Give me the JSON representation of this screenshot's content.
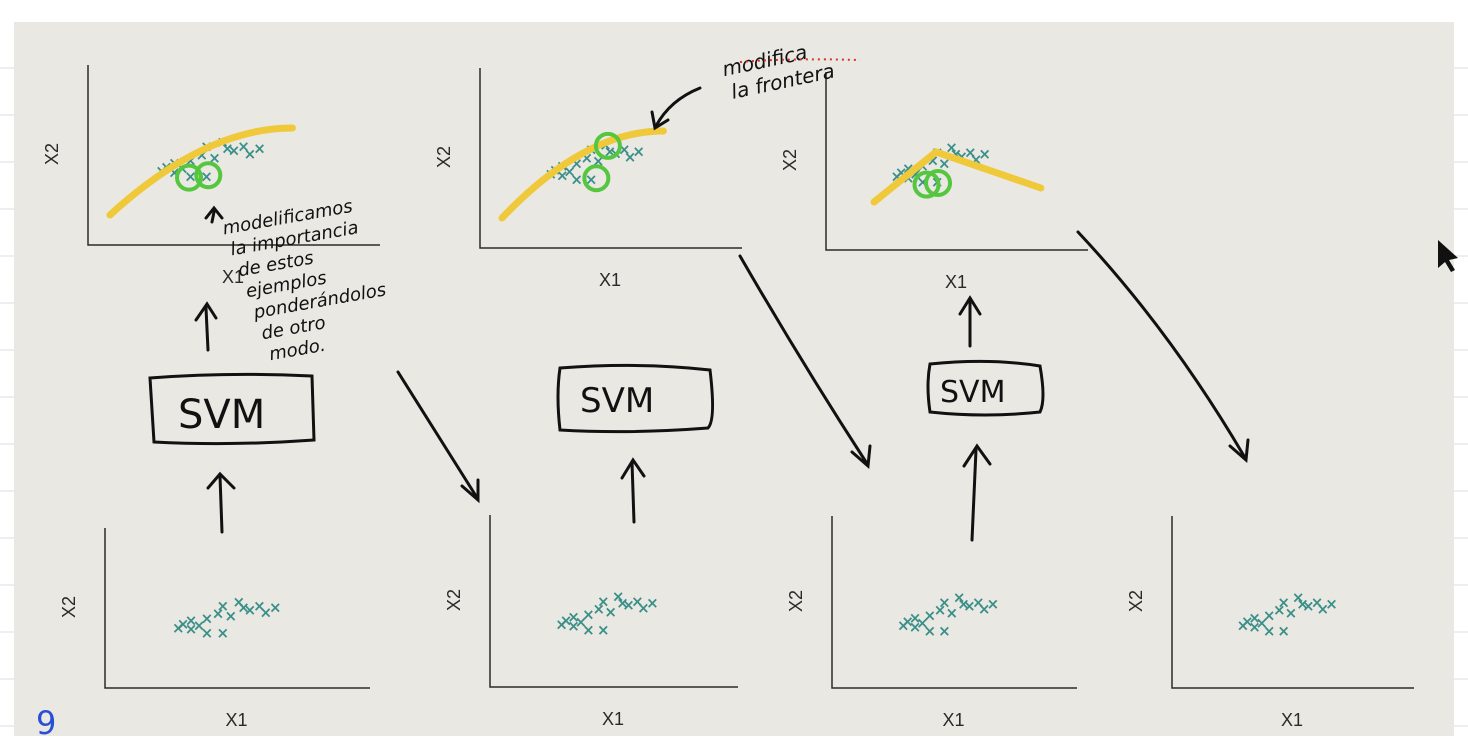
{
  "colors": {
    "paper": "#e9e8e2",
    "marker": "#3a8f88",
    "boundary": "#f0c93a",
    "highlight": "#55c63f",
    "ink": "#111111",
    "axis": "#2a2a2a"
  },
  "axes": {
    "x_label": "X1",
    "y_label": "X2"
  },
  "svm_label": "SVM",
  "notes": {
    "note1_lines": [
      "modelificamos",
      "la importancia",
      "de estos",
      "ejemplos",
      "ponderándolos",
      "de otro",
      "modo."
    ],
    "note2_lines": [
      "modifica",
      "la frontera"
    ],
    "page_mark": "9"
  },
  "top_plots": [
    {
      "id": "top-1",
      "boundary": "curve",
      "highlights": [
        [
          0.38,
          0.35
        ],
        [
          0.5,
          0.38
        ]
      ]
    },
    {
      "id": "top-2",
      "boundary": "curve",
      "highlights": [
        [
          0.61,
          0.78
        ],
        [
          0.53,
          0.38
        ]
      ]
    },
    {
      "id": "top-3",
      "boundary": "peak",
      "highlights": [
        [
          0.42,
          0.33
        ],
        [
          0.5,
          0.35
        ]
      ]
    }
  ],
  "bottom_plots": [
    {
      "id": "bottom-1"
    },
    {
      "id": "bottom-2"
    },
    {
      "id": "bottom-3"
    },
    {
      "id": "bottom-4"
    }
  ],
  "scatter_points": [
    [
      0.17,
      0.42
    ],
    [
      0.2,
      0.47
    ],
    [
      0.25,
      0.52
    ],
    [
      0.3,
      0.45
    ],
    [
      0.35,
      0.55
    ],
    [
      0.35,
      0.35
    ],
    [
      0.42,
      0.62
    ],
    [
      0.45,
      0.72
    ],
    [
      0.5,
      0.58
    ],
    [
      0.55,
      0.78
    ],
    [
      0.58,
      0.7
    ],
    [
      0.62,
      0.67
    ],
    [
      0.68,
      0.72
    ],
    [
      0.72,
      0.63
    ],
    [
      0.78,
      0.7
    ],
    [
      0.45,
      0.35
    ],
    [
      0.25,
      0.4
    ]
  ]
}
